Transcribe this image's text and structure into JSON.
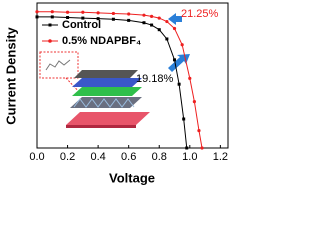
{
  "chart_data": {
    "type": "line",
    "xlabel": "Voltage",
    "ylabel": "Current Density",
    "xlim": [
      0,
      1.25
    ],
    "ylim": [
      0,
      25
    ],
    "xticks": [
      {
        "value": 0,
        "label": "0.0"
      },
      0.2,
      0.4,
      0.6,
      0.8,
      {
        "value": 1,
        "label": "1.0"
      },
      1.2
    ],
    "series": [
      {
        "name": "Control",
        "color": "#000000",
        "marker": "square",
        "x": [
          0,
          0.1,
          0.2,
          0.3,
          0.4,
          0.5,
          0.6,
          0.7,
          0.75,
          0.8,
          0.85,
          0.9,
          0.93,
          0.96,
          0.98
        ],
        "values": [
          22.6,
          22.6,
          22.5,
          22.4,
          22.3,
          22.2,
          22.0,
          21.6,
          21.2,
          20.4,
          18.8,
          15.2,
          11.0,
          5.0,
          0
        ]
      },
      {
        "name": "0.5% NDAPBF₄",
        "color": "#ee2020",
        "marker": "circle",
        "x": [
          0,
          0.1,
          0.2,
          0.3,
          0.4,
          0.5,
          0.6,
          0.7,
          0.75,
          0.8,
          0.85,
          0.9,
          0.95,
          1.0,
          1.03,
          1.06,
          1.08
        ],
        "values": [
          23.5,
          23.5,
          23.4,
          23.4,
          23.3,
          23.2,
          23.1,
          22.9,
          22.7,
          22.4,
          21.8,
          20.6,
          17.8,
          12.0,
          8.0,
          3.0,
          0
        ]
      }
    ],
    "annotations": [
      "21.25%",
      "19.18%"
    ]
  }
}
